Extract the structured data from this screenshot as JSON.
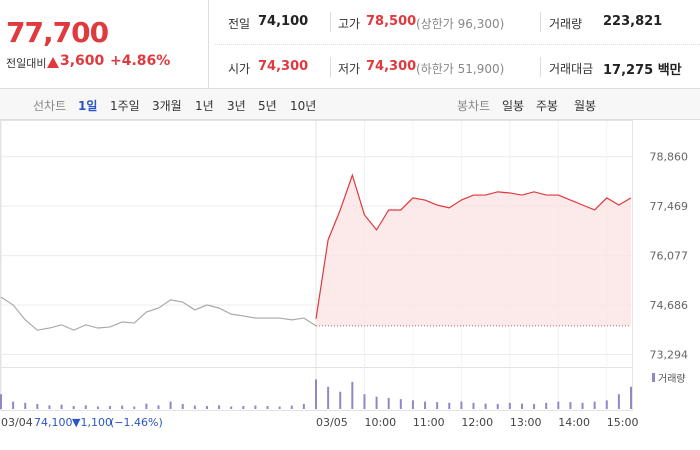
{
  "quote": {
    "price": "77,700",
    "change_label": "전일대비",
    "change": "3,600",
    "change_pct": "+4.86%",
    "prev_close_label": "전일",
    "prev_close": "74,100",
    "high_label": "고가",
    "high": "78,500",
    "upper_limit": "(상한가 96,300)",
    "volume_label": "거래량",
    "volume": "223,821",
    "open_label": "시가",
    "open": "74,300",
    "low_label": "저가",
    "low": "74,300",
    "lower_limit": "(하한가 51,900)",
    "amount_label": "거래대금",
    "amount": "17,275 백만"
  },
  "line_tabs": {
    "label": "선차트",
    "items": [
      "1일",
      "1주일",
      "3개월",
      "1년",
      "3년",
      "5년",
      "10년"
    ]
  },
  "candle_tabs": {
    "label": "봉차트",
    "items": [
      "일봉",
      "주봉",
      "월봉"
    ]
  },
  "chart_data": {
    "type": "line",
    "ylim": [
      73000,
      79750
    ],
    "yticks": [
      {
        "value": 78860,
        "label": "78,860"
      },
      {
        "value": 77469,
        "label": "77,469"
      },
      {
        "value": 76077,
        "label": "76,077"
      },
      {
        "value": 74686,
        "label": "74,686"
      },
      {
        "value": 73294,
        "label": "73,294"
      }
    ],
    "xticks": [
      {
        "value": "03/04 09:00",
        "label": "03/04"
      },
      {
        "value": "03/05 09:00",
        "label": "03/05"
      },
      {
        "value": "03/05 10:00",
        "label": "10:00"
      },
      {
        "value": "03/05 11:00",
        "label": "11:00"
      },
      {
        "value": "03/05 12:00",
        "label": "12:00"
      },
      {
        "value": "03/05 13:00",
        "label": "13:00"
      },
      {
        "value": "03/05 14:00",
        "label": "14:00"
      },
      {
        "value": "03/05 15:00",
        "label": "15:00"
      }
    ],
    "baseline": 74100,
    "series": [
      {
        "date": "03/04",
        "color": "#aaaaaa",
        "x": [
          "09:00",
          "09:15",
          "09:30",
          "09:45",
          "10:00",
          "10:15",
          "10:30",
          "10:45",
          "11:00",
          "11:15",
          "11:30",
          "11:45",
          "12:00",
          "12:15",
          "12:30",
          "12:45",
          "13:00",
          "13:15",
          "13:30",
          "13:45",
          "14:00",
          "14:15",
          "14:30",
          "14:45",
          "15:00",
          "15:15",
          "15:30"
        ],
        "values": [
          74910,
          74690,
          74270,
          73980,
          74040,
          74130,
          73980,
          74130,
          74040,
          74070,
          74210,
          74180,
          74490,
          74600,
          74830,
          74770,
          74550,
          74690,
          74600,
          74430,
          74380,
          74320,
          74320,
          74320,
          74270,
          74320,
          74100
        ]
      },
      {
        "date": "03/05",
        "color": "#e0393e",
        "fill": "#fbe3e3",
        "x": [
          "09:00",
          "09:15",
          "09:30",
          "09:45",
          "10:00",
          "10:15",
          "10:30",
          "10:45",
          "11:00",
          "11:15",
          "11:30",
          "11:45",
          "12:00",
          "12:15",
          "12:30",
          "12:45",
          "13:00",
          "13:15",
          "13:30",
          "13:45",
          "14:00",
          "14:15",
          "14:30",
          "14:45",
          "15:00",
          "15:15",
          "15:30"
        ],
        "values": [
          74300,
          76520,
          77360,
          78340,
          77220,
          76800,
          77360,
          77360,
          77700,
          77640,
          77500,
          77420,
          77640,
          77780,
          77780,
          77870,
          77840,
          77780,
          77870,
          77780,
          77780,
          77640,
          77500,
          77360,
          77700,
          77500,
          77700
        ]
      }
    ],
    "prev_info": {
      "price": "74,100",
      "change": "▼1,100",
      "pct": "(−1.46%)"
    },
    "volume": {
      "name": "거래량",
      "color": "#9486c4",
      "ylim": [
        0,
        150000
      ],
      "series": [
        {
          "date": "03/04",
          "values": [
            60000,
            30000,
            25000,
            20000,
            15000,
            18000,
            12000,
            15000,
            10000,
            12000,
            14000,
            10000,
            22000,
            15000,
            30000,
            20000,
            14000,
            12000,
            15000,
            10000,
            12000,
            14000,
            12000,
            10000,
            14000,
            20000,
            40000
          ]
        },
        {
          "date": "03/05",
          "values": [
            120000,
            90000,
            70000,
            110000,
            60000,
            50000,
            45000,
            40000,
            35000,
            30000,
            28000,
            25000,
            30000,
            25000,
            22000,
            20000,
            25000,
            22000,
            20000,
            25000,
            30000,
            28000,
            25000,
            30000,
            35000,
            60000,
            90000
          ]
        }
      ]
    }
  }
}
